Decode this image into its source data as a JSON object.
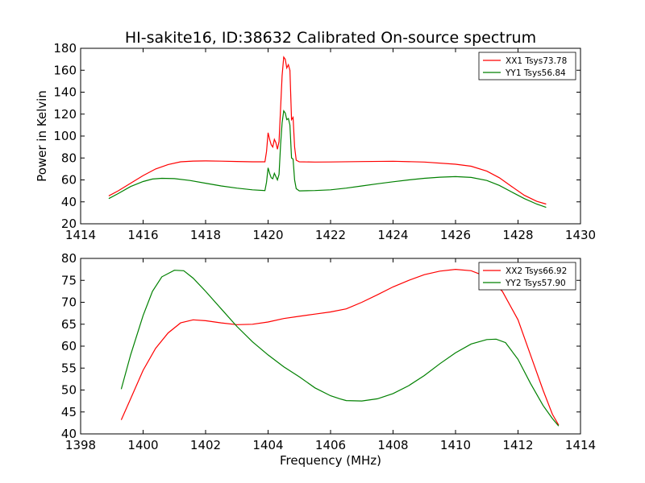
{
  "page": {
    "title": "HI-sakite16, ID:38632 Calibrated On-source spectrum",
    "xlabel_bottom": "Frequency (MHz)"
  },
  "chart_data": [
    {
      "type": "line",
      "title": "HI-sakite16, ID:38632 Calibrated On-source spectrum",
      "xlabel": "",
      "ylabel": "Power in Kelvin",
      "xlim": [
        1414,
        1430
      ],
      "ylim": [
        20,
        180
      ],
      "xticks": [
        "1414",
        "1416",
        "1418",
        "1420",
        "1422",
        "1424",
        "1426",
        "1428",
        "1430"
      ],
      "yticks": [
        "20",
        "40",
        "60",
        "80",
        "100",
        "120",
        "140",
        "160",
        "180"
      ],
      "grid": false,
      "legend_position": "top-right",
      "series": [
        {
          "name": "XX1 Tsys73.78",
          "color": "#ff0000",
          "points": [
            [
              1414.9,
              45.5
            ],
            [
              1415.2,
              50
            ],
            [
              1415.6,
              57
            ],
            [
              1416.0,
              64
            ],
            [
              1416.4,
              70
            ],
            [
              1416.8,
              74
            ],
            [
              1417.2,
              76.5
            ],
            [
              1417.6,
              77.2
            ],
            [
              1418.0,
              77.3
            ],
            [
              1418.5,
              77.1
            ],
            [
              1419.0,
              76.8
            ],
            [
              1419.5,
              76.5
            ],
            [
              1419.9,
              76.5
            ],
            [
              1419.95,
              86
            ],
            [
              1420.0,
              103
            ],
            [
              1420.05,
              97
            ],
            [
              1420.1,
              92
            ],
            [
              1420.15,
              90
            ],
            [
              1420.2,
              97
            ],
            [
              1420.25,
              94
            ],
            [
              1420.3,
              88
            ],
            [
              1420.35,
              95
            ],
            [
              1420.4,
              125
            ],
            [
              1420.45,
              155
            ],
            [
              1420.5,
              172
            ],
            [
              1420.55,
              170
            ],
            [
              1420.6,
              162
            ],
            [
              1420.65,
              165
            ],
            [
              1420.7,
              160
            ],
            [
              1420.75,
              115
            ],
            [
              1420.8,
              117
            ],
            [
              1420.85,
              90
            ],
            [
              1420.9,
              78
            ],
            [
              1421.0,
              76.5
            ],
            [
              1421.5,
              76.3
            ],
            [
              1422.0,
              76.4
            ],
            [
              1423.0,
              76.7
            ],
            [
              1424.0,
              77.0
            ],
            [
              1425.0,
              76.3
            ],
            [
              1426.0,
              74.3
            ],
            [
              1426.5,
              72.5
            ],
            [
              1427.0,
              68
            ],
            [
              1427.4,
              62
            ],
            [
              1427.8,
              54
            ],
            [
              1428.2,
              46
            ],
            [
              1428.6,
              40.5
            ],
            [
              1428.9,
              38
            ]
          ]
        },
        {
          "name": "YY1 Tsys56.84",
          "color": "#008000",
          "points": [
            [
              1414.9,
              43
            ],
            [
              1415.2,
              47.5
            ],
            [
              1415.6,
              54
            ],
            [
              1416.0,
              58.5
            ],
            [
              1416.3,
              60.8
            ],
            [
              1416.6,
              61.5
            ],
            [
              1417.0,
              61.2
            ],
            [
              1417.5,
              59.5
            ],
            [
              1418.0,
              57
            ],
            [
              1418.5,
              54.5
            ],
            [
              1419.0,
              52.5
            ],
            [
              1419.5,
              51
            ],
            [
              1419.9,
              50.3
            ],
            [
              1419.95,
              58
            ],
            [
              1420.0,
              71
            ],
            [
              1420.05,
              66
            ],
            [
              1420.1,
              62
            ],
            [
              1420.15,
              61
            ],
            [
              1420.2,
              66
            ],
            [
              1420.25,
              63
            ],
            [
              1420.3,
              60
            ],
            [
              1420.35,
              65
            ],
            [
              1420.4,
              92
            ],
            [
              1420.45,
              112
            ],
            [
              1420.5,
              123
            ],
            [
              1420.55,
              121
            ],
            [
              1420.6,
              115
            ],
            [
              1420.65,
              116
            ],
            [
              1420.7,
              110
            ],
            [
              1420.75,
              80
            ],
            [
              1420.8,
              79
            ],
            [
              1420.85,
              60
            ],
            [
              1420.9,
              52
            ],
            [
              1421.0,
              50
            ],
            [
              1421.5,
              50.3
            ],
            [
              1422.0,
              51
            ],
            [
              1422.5,
              52.5
            ],
            [
              1423.0,
              54.5
            ],
            [
              1423.5,
              56.5
            ],
            [
              1424.0,
              58.3
            ],
            [
              1424.5,
              60
            ],
            [
              1425.0,
              61.5
            ],
            [
              1425.5,
              62.5
            ],
            [
              1426.0,
              63
            ],
            [
              1426.5,
              62.3
            ],
            [
              1427.0,
              59.5
            ],
            [
              1427.4,
              55
            ],
            [
              1427.8,
              49
            ],
            [
              1428.2,
              43
            ],
            [
              1428.6,
              38
            ],
            [
              1428.9,
              35
            ]
          ]
        }
      ]
    },
    {
      "type": "line",
      "title": "",
      "xlabel": "Frequency (MHz)",
      "ylabel": "",
      "xlim": [
        1398,
        1414
      ],
      "ylim": [
        40,
        80
      ],
      "xticks": [
        "1398",
        "1400",
        "1402",
        "1404",
        "1406",
        "1408",
        "1410",
        "1412",
        "1414"
      ],
      "yticks": [
        "40",
        "45",
        "50",
        "55",
        "60",
        "65",
        "70",
        "75",
        "80"
      ],
      "grid": false,
      "legend_position": "top-right",
      "series": [
        {
          "name": "XX2 Tsys66.92",
          "color": "#ff0000",
          "points": [
            [
              1399.3,
              43.2
            ],
            [
              1399.6,
              48
            ],
            [
              1400.0,
              54.5
            ],
            [
              1400.4,
              59.5
            ],
            [
              1400.8,
              63
            ],
            [
              1401.2,
              65.3
            ],
            [
              1401.6,
              66
            ],
            [
              1402.0,
              65.8
            ],
            [
              1402.5,
              65.3
            ],
            [
              1403.0,
              64.9
            ],
            [
              1403.5,
              65
            ],
            [
              1404.0,
              65.5
            ],
            [
              1404.5,
              66.3
            ],
            [
              1405.0,
              66.8
            ],
            [
              1405.5,
              67.3
            ],
            [
              1406.0,
              67.8
            ],
            [
              1406.5,
              68.5
            ],
            [
              1407.0,
              70
            ],
            [
              1407.5,
              71.7
            ],
            [
              1408.0,
              73.5
            ],
            [
              1408.5,
              75
            ],
            [
              1409.0,
              76.3
            ],
            [
              1409.5,
              77.1
            ],
            [
              1410.0,
              77.5
            ],
            [
              1410.5,
              77.2
            ],
            [
              1411.0,
              75.8
            ],
            [
              1411.5,
              72.5
            ],
            [
              1412.0,
              66
            ],
            [
              1412.4,
              58
            ],
            [
              1412.8,
              50
            ],
            [
              1413.1,
              44.5
            ],
            [
              1413.3,
              42
            ]
          ]
        },
        {
          "name": "YY2 Tsys57.90",
          "color": "#008000",
          "points": [
            [
              1399.3,
              50.2
            ],
            [
              1399.6,
              58
            ],
            [
              1400.0,
              67
            ],
            [
              1400.3,
              72.5
            ],
            [
              1400.6,
              75.8
            ],
            [
              1401.0,
              77.3
            ],
            [
              1401.3,
              77.2
            ],
            [
              1401.6,
              75.5
            ],
            [
              1402.0,
              72.5
            ],
            [
              1402.5,
              68.5
            ],
            [
              1403.0,
              64.5
            ],
            [
              1403.5,
              61
            ],
            [
              1404.0,
              58
            ],
            [
              1404.5,
              55.3
            ],
            [
              1405.0,
              53
            ],
            [
              1405.5,
              50.5
            ],
            [
              1406.0,
              48.7
            ],
            [
              1406.3,
              48
            ],
            [
              1406.5,
              47.6
            ],
            [
              1407.0,
              47.5
            ],
            [
              1407.5,
              48
            ],
            [
              1408.0,
              49.2
            ],
            [
              1408.5,
              51
            ],
            [
              1409.0,
              53.3
            ],
            [
              1409.5,
              56
            ],
            [
              1410.0,
              58.5
            ],
            [
              1410.5,
              60.5
            ],
            [
              1411.0,
              61.5
            ],
            [
              1411.3,
              61.6
            ],
            [
              1411.6,
              60.8
            ],
            [
              1412.0,
              57
            ],
            [
              1412.4,
              51.5
            ],
            [
              1412.8,
              46.5
            ],
            [
              1413.1,
              43.5
            ],
            [
              1413.3,
              41.8
            ]
          ]
        }
      ]
    }
  ]
}
